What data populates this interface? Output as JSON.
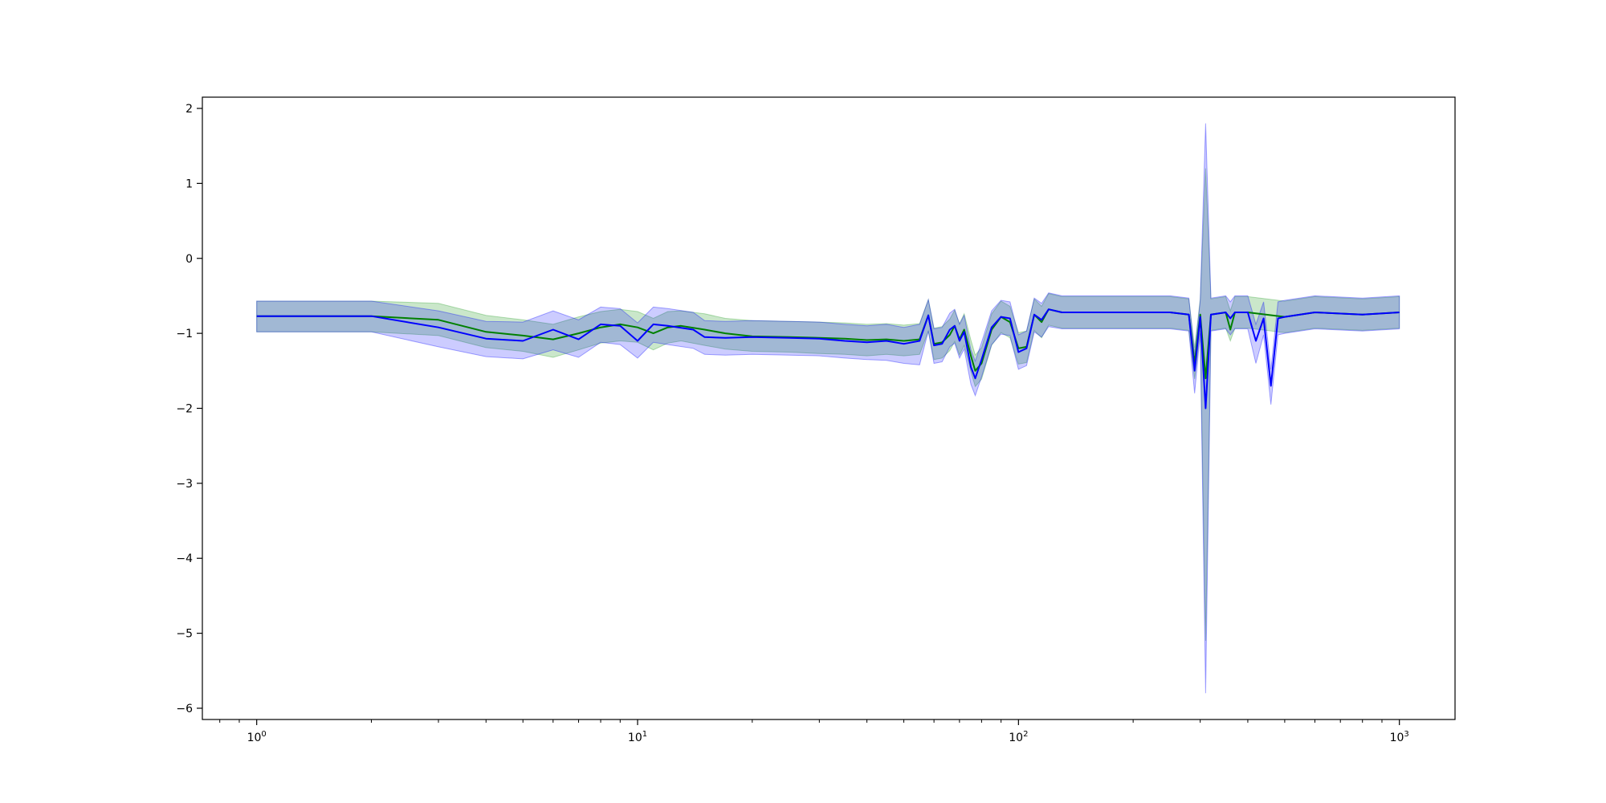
{
  "chart_data": {
    "type": "line",
    "title": "",
    "xlabel": "",
    "ylabel": "",
    "xscale": "log",
    "xlim": [
      0.72,
      1400
    ],
    "ylim": [
      -6.15,
      2.15
    ],
    "grid": false,
    "legend": null,
    "x_ticks": [
      {
        "value": 1,
        "base": "10",
        "exp": "0"
      },
      {
        "value": 10,
        "base": "10",
        "exp": "1"
      },
      {
        "value": 100,
        "base": "10",
        "exp": "2"
      },
      {
        "value": 1000,
        "base": "10",
        "exp": "3"
      }
    ],
    "y_ticks": [
      {
        "value": 2,
        "label": "2"
      },
      {
        "value": 1,
        "label": "1"
      },
      {
        "value": 0,
        "label": "0"
      },
      {
        "value": -1,
        "label": "−1"
      },
      {
        "value": -2,
        "label": "−2"
      },
      {
        "value": -3,
        "label": "−3"
      },
      {
        "value": -4,
        "label": "−4"
      },
      {
        "value": -5,
        "label": "−5"
      },
      {
        "value": -6,
        "label": "−6"
      }
    ],
    "series": [
      {
        "color": "#008000",
        "band_color": "#2ca02c",
        "band_opacity": 0.25,
        "points": [
          [
            1,
            -0.77,
            -0.57,
            -0.98
          ],
          [
            2,
            -0.77,
            -0.57,
            -0.98
          ],
          [
            3,
            -0.82,
            -0.6,
            -1.03
          ],
          [
            4,
            -0.98,
            -0.76,
            -1.19
          ],
          [
            5,
            -1.03,
            -0.82,
            -1.24
          ],
          [
            6,
            -1.08,
            -0.88,
            -1.32
          ],
          [
            7,
            -1.0,
            -0.78,
            -1.22
          ],
          [
            8,
            -0.92,
            -0.71,
            -1.13
          ],
          [
            9,
            -0.88,
            -0.68,
            -1.1
          ],
          [
            10,
            -0.92,
            -0.71,
            -1.12
          ],
          [
            11,
            -1.0,
            -0.8,
            -1.22
          ],
          [
            12,
            -0.92,
            -0.71,
            -1.13
          ],
          [
            13,
            -0.9,
            -0.7,
            -1.1
          ],
          [
            15,
            -0.95,
            -0.74,
            -1.16
          ],
          [
            17,
            -1.0,
            -0.8,
            -1.21
          ],
          [
            20,
            -1.04,
            -0.83,
            -1.24
          ],
          [
            25,
            -1.05,
            -0.84,
            -1.25
          ],
          [
            30,
            -1.06,
            -0.85,
            -1.27
          ],
          [
            35,
            -1.07,
            -0.86,
            -1.28
          ],
          [
            40,
            -1.09,
            -0.88,
            -1.3
          ],
          [
            45,
            -1.08,
            -0.87,
            -1.28
          ],
          [
            50,
            -1.1,
            -0.89,
            -1.3
          ],
          [
            55,
            -1.08,
            -0.87,
            -1.28
          ],
          [
            58,
            -0.76,
            -0.55,
            -0.97
          ],
          [
            60,
            -1.14,
            -0.93,
            -1.35
          ],
          [
            63,
            -1.12,
            -0.91,
            -1.33
          ],
          [
            66,
            -1.02,
            -0.81,
            -1.23
          ],
          [
            68,
            -0.9,
            -0.69,
            -1.11
          ],
          [
            70,
            -1.08,
            -0.87,
            -1.29
          ],
          [
            72,
            -0.95,
            -0.74,
            -1.16
          ],
          [
            75,
            -1.3,
            -1.09,
            -1.51
          ],
          [
            77,
            -1.5,
            -1.29,
            -1.71
          ],
          [
            80,
            -1.4,
            -1.19,
            -1.61
          ],
          [
            85,
            -0.95,
            -0.74,
            -1.16
          ],
          [
            90,
            -0.78,
            -0.57,
            -0.99
          ],
          [
            95,
            -0.85,
            -0.64,
            -1.06
          ],
          [
            100,
            -1.2,
            -0.99,
            -1.41
          ],
          [
            105,
            -1.18,
            -0.97,
            -1.39
          ],
          [
            110,
            -0.75,
            -0.54,
            -0.96
          ],
          [
            115,
            -0.85,
            -0.64,
            -1.06
          ],
          [
            120,
            -0.68,
            -0.47,
            -0.89
          ],
          [
            130,
            -0.72,
            -0.51,
            -0.93
          ],
          [
            140,
            -0.72,
            -0.51,
            -0.93
          ],
          [
            200,
            -0.72,
            -0.51,
            -0.93
          ],
          [
            250,
            -0.72,
            -0.51,
            -0.93
          ],
          [
            280,
            -0.75,
            -0.54,
            -0.96
          ],
          [
            290,
            -1.4,
            -1.19,
            -1.61
          ],
          [
            300,
            -0.75,
            -0.54,
            -0.96
          ],
          [
            310,
            -1.6,
            1.2,
            -5.1
          ],
          [
            320,
            -0.75,
            -0.54,
            -0.96
          ],
          [
            350,
            -0.72,
            -0.51,
            -0.93
          ],
          [
            360,
            -0.95,
            -0.7,
            -1.1
          ],
          [
            370,
            -0.72,
            -0.51,
            -0.93
          ],
          [
            400,
            -0.72,
            -0.51,
            -0.93
          ],
          [
            500,
            -0.78,
            -0.57,
            -0.99
          ],
          [
            600,
            -0.72,
            -0.51,
            -0.93
          ],
          [
            800,
            -0.75,
            -0.54,
            -0.96
          ],
          [
            1000,
            -0.72,
            -0.51,
            -0.93
          ]
        ]
      },
      {
        "color": "#0000ff",
        "band_color": "#0000ff",
        "band_opacity": 0.2,
        "points": [
          [
            1,
            -0.77,
            -0.57,
            -0.98
          ],
          [
            2,
            -0.77,
            -0.57,
            -0.98
          ],
          [
            3,
            -0.92,
            -0.7,
            -1.18
          ],
          [
            4,
            -1.07,
            -0.84,
            -1.31
          ],
          [
            5,
            -1.1,
            -0.85,
            -1.34
          ],
          [
            6,
            -0.95,
            -0.7,
            -1.22
          ],
          [
            7,
            -1.08,
            -0.82,
            -1.32
          ],
          [
            8,
            -0.88,
            -0.65,
            -1.12
          ],
          [
            9,
            -0.9,
            -0.67,
            -1.15
          ],
          [
            10,
            -1.1,
            -0.86,
            -1.33
          ],
          [
            11,
            -0.88,
            -0.65,
            -1.12
          ],
          [
            12,
            -0.9,
            -0.67,
            -1.15
          ],
          [
            14,
            -0.95,
            -0.72,
            -1.2
          ],
          [
            15,
            -1.05,
            -0.83,
            -1.28
          ],
          [
            17,
            -1.06,
            -0.84,
            -1.29
          ],
          [
            20,
            -1.05,
            -0.83,
            -1.28
          ],
          [
            25,
            -1.06,
            -0.84,
            -1.29
          ],
          [
            30,
            -1.07,
            -0.85,
            -1.3
          ],
          [
            35,
            -1.1,
            -0.88,
            -1.33
          ],
          [
            40,
            -1.12,
            -0.9,
            -1.35
          ],
          [
            45,
            -1.1,
            -0.88,
            -1.36
          ],
          [
            50,
            -1.14,
            -0.92,
            -1.4
          ],
          [
            55,
            -1.1,
            -0.88,
            -1.42
          ],
          [
            58,
            -0.76,
            -0.55,
            -0.97
          ],
          [
            60,
            -1.16,
            -0.94,
            -1.4
          ],
          [
            63,
            -1.14,
            -0.92,
            -1.38
          ],
          [
            66,
            -0.95,
            -0.73,
            -1.18
          ],
          [
            68,
            -0.9,
            -0.68,
            -1.13
          ],
          [
            70,
            -1.1,
            -0.88,
            -1.33
          ],
          [
            72,
            -0.98,
            -0.76,
            -1.21
          ],
          [
            75,
            -1.45,
            -1.22,
            -1.68
          ],
          [
            77,
            -1.6,
            -1.37,
            -1.83
          ],
          [
            80,
            -1.35,
            -1.12,
            -1.58
          ],
          [
            85,
            -0.92,
            -0.7,
            -1.15
          ],
          [
            90,
            -0.78,
            -0.56,
            -1.01
          ],
          [
            95,
            -0.8,
            -0.58,
            -1.03
          ],
          [
            100,
            -1.25,
            -1.02,
            -1.48
          ],
          [
            105,
            -1.2,
            -0.97,
            -1.43
          ],
          [
            110,
            -0.75,
            -0.53,
            -0.98
          ],
          [
            115,
            -0.82,
            -0.6,
            -1.05
          ],
          [
            120,
            -0.68,
            -0.46,
            -0.91
          ],
          [
            130,
            -0.72,
            -0.5,
            -0.94
          ],
          [
            140,
            -0.72,
            -0.5,
            -0.94
          ],
          [
            200,
            -0.72,
            -0.5,
            -0.94
          ],
          [
            250,
            -0.72,
            -0.5,
            -0.94
          ],
          [
            280,
            -0.75,
            -0.53,
            -0.97
          ],
          [
            290,
            -1.5,
            -1.28,
            -1.8
          ],
          [
            300,
            -0.78,
            -0.56,
            -1.0
          ],
          [
            310,
            -2.0,
            1.8,
            -5.8
          ],
          [
            320,
            -0.75,
            -0.53,
            -0.97
          ],
          [
            350,
            -0.72,
            -0.5,
            -0.94
          ],
          [
            360,
            -0.8,
            -0.58,
            -1.02
          ],
          [
            370,
            -0.72,
            -0.5,
            -0.94
          ],
          [
            400,
            -0.72,
            -0.5,
            -0.94
          ],
          [
            420,
            -1.1,
            -0.88,
            -1.4
          ],
          [
            440,
            -0.8,
            -0.58,
            -1.02
          ],
          [
            460,
            -1.7,
            -1.48,
            -1.95
          ],
          [
            480,
            -0.8,
            -0.58,
            -1.02
          ],
          [
            500,
            -0.78,
            -0.56,
            -1.0
          ],
          [
            600,
            -0.72,
            -0.5,
            -0.94
          ],
          [
            800,
            -0.75,
            -0.53,
            -0.97
          ],
          [
            1000,
            -0.72,
            -0.5,
            -0.94
          ]
        ]
      }
    ]
  }
}
